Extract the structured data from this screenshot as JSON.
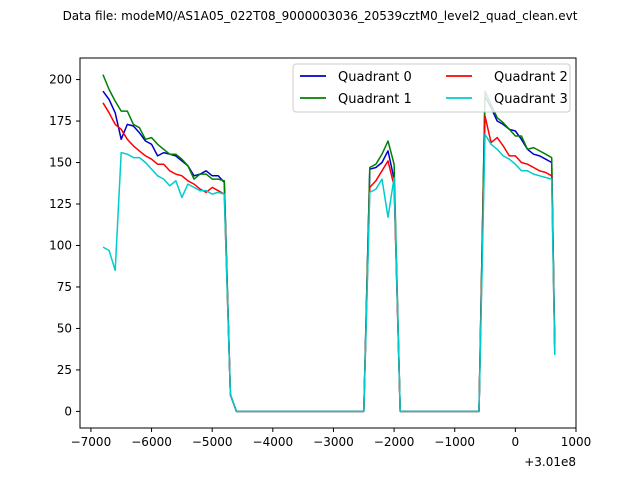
{
  "chart_data": {
    "type": "line",
    "title": "Data file: modeM0/AS1A05_022T08_9000003036_20539cztM0_level2_quad_clean.evt",
    "xlabel": "",
    "ylabel": "",
    "x_offset_label": "+3.01e8",
    "xlim": [
      -7180,
      1000
    ],
    "ylim": [
      -10,
      213
    ],
    "xticks": [
      -7000,
      -6000,
      -5000,
      -4000,
      -3000,
      -2000,
      -1000,
      0,
      1000
    ],
    "xtick_labels": [
      "−7000",
      "−6000",
      "−5000",
      "−4000",
      "−3000",
      "−2000",
      "−1000",
      "0",
      "1000"
    ],
    "yticks": [
      0,
      25,
      50,
      75,
      100,
      125,
      150,
      175,
      200
    ],
    "ytick_labels": [
      "0",
      "25",
      "50",
      "75",
      "100",
      "125",
      "150",
      "175",
      "200"
    ],
    "grid": false,
    "legend": {
      "placement": "top-right",
      "columns": 2
    },
    "series": [
      {
        "name": "Quadrant 0",
        "color": "#0000cc",
        "x": [
          -6800,
          -6700,
          -6600,
          -6500,
          -6400,
          -6300,
          -6200,
          -6100,
          -6000,
          -5900,
          -5800,
          -5700,
          -5600,
          -5500,
          -5400,
          -5300,
          -5200,
          -5100,
          -5000,
          -4900,
          -4800,
          -4700,
          -4600,
          -4500,
          -4400,
          -4300,
          -4200,
          -4100,
          -4000,
          -3900,
          -3800,
          -3700,
          -3600,
          -3500,
          -3400,
          -3300,
          -3200,
          -3100,
          -3000,
          -2900,
          -2800,
          -2700,
          -2600,
          -2500,
          -2400,
          -2300,
          -2200,
          -2100,
          -2000,
          -1900,
          -1800,
          -1700,
          -1600,
          -1500,
          -1400,
          -1300,
          -1200,
          -1100,
          -1000,
          -900,
          -800,
          -700,
          -600,
          -500,
          -400,
          -300,
          -200,
          -100,
          0,
          100,
          200,
          300,
          400,
          500,
          600,
          650
        ],
        "y": [
          193,
          188,
          180,
          164,
          173,
          172,
          168,
          163,
          161,
          154,
          156,
          155,
          154,
          151,
          148,
          142,
          143,
          145,
          142,
          142,
          138,
          10,
          0,
          0,
          0,
          0,
          0,
          0,
          0,
          0,
          0,
          0,
          0,
          0,
          0,
          0,
          0,
          0,
          0,
          0,
          0,
          0,
          0,
          0,
          146,
          147,
          150,
          157,
          140,
          0,
          0,
          0,
          0,
          0,
          0,
          0,
          0,
          0,
          0,
          0,
          0,
          0,
          0,
          190,
          183,
          175,
          173,
          170,
          169,
          164,
          158,
          155,
          154,
          152,
          150,
          38
        ]
      },
      {
        "name": "Quadrant 1",
        "color": "#008000",
        "x": [
          -6800,
          -6700,
          -6600,
          -6500,
          -6400,
          -6300,
          -6200,
          -6100,
          -6000,
          -5900,
          -5800,
          -5700,
          -5600,
          -5500,
          -5400,
          -5300,
          -5200,
          -5100,
          -5000,
          -4900,
          -4800,
          -4700,
          -4600,
          -4500,
          -4400,
          -4300,
          -4200,
          -4100,
          -4000,
          -3900,
          -3800,
          -3700,
          -3600,
          -3500,
          -3400,
          -3300,
          -3200,
          -3100,
          -3000,
          -2900,
          -2800,
          -2700,
          -2600,
          -2500,
          -2400,
          -2300,
          -2200,
          -2100,
          -2000,
          -1900,
          -1800,
          -1700,
          -1600,
          -1500,
          -1400,
          -1300,
          -1200,
          -1100,
          -1000,
          -900,
          -800,
          -700,
          -600,
          -500,
          -400,
          -300,
          -200,
          -100,
          0,
          100,
          200,
          300,
          400,
          500,
          600,
          650
        ],
        "y": [
          203,
          194,
          187,
          181,
          181,
          173,
          171,
          164,
          165,
          161,
          158,
          155,
          155,
          152,
          148,
          140,
          143,
          143,
          140,
          140,
          139,
          10,
          0,
          0,
          0,
          0,
          0,
          0,
          0,
          0,
          0,
          0,
          0,
          0,
          0,
          0,
          0,
          0,
          0,
          0,
          0,
          0,
          0,
          0,
          147,
          149,
          155,
          163,
          149,
          0,
          0,
          0,
          0,
          0,
          0,
          0,
          0,
          0,
          0,
          0,
          0,
          0,
          0,
          193,
          185,
          177,
          174,
          170,
          166,
          166,
          158,
          159,
          157,
          155,
          153,
          36
        ]
      },
      {
        "name": "Quadrant 2",
        "color": "#ff0000",
        "x": [
          -6800,
          -6700,
          -6600,
          -6500,
          -6400,
          -6300,
          -6200,
          -6100,
          -6000,
          -5900,
          -5800,
          -5700,
          -5600,
          -5500,
          -5400,
          -5300,
          -5200,
          -5100,
          -5000,
          -4900,
          -4800,
          -4700,
          -4600,
          -4500,
          -4400,
          -4300,
          -4200,
          -4100,
          -4000,
          -3900,
          -3800,
          -3700,
          -3600,
          -3500,
          -3400,
          -3300,
          -3200,
          -3100,
          -3000,
          -2900,
          -2800,
          -2700,
          -2600,
          -2500,
          -2400,
          -2300,
          -2200,
          -2100,
          -2000,
          -1900,
          -1800,
          -1700,
          -1600,
          -1500,
          -1400,
          -1300,
          -1200,
          -1100,
          -1000,
          -900,
          -800,
          -700,
          -600,
          -500,
          -400,
          -300,
          -200,
          -100,
          0,
          100,
          200,
          300,
          400,
          500,
          600,
          650
        ],
        "y": [
          186,
          180,
          173,
          170,
          164,
          160,
          157,
          154,
          152,
          149,
          149,
          145,
          143,
          142,
          139,
          137,
          134,
          132,
          135,
          133,
          131,
          10,
          0,
          0,
          0,
          0,
          0,
          0,
          0,
          0,
          0,
          0,
          0,
          0,
          0,
          0,
          0,
          0,
          0,
          0,
          0,
          0,
          0,
          0,
          135,
          139,
          145,
          151,
          136,
          0,
          0,
          0,
          0,
          0,
          0,
          0,
          0,
          0,
          0,
          0,
          0,
          0,
          0,
          178,
          162,
          165,
          160,
          154,
          154,
          150,
          149,
          147,
          145,
          144,
          142,
          35
        ]
      },
      {
        "name": "Quadrant 3",
        "color": "#00cccc",
        "x": [
          -6800,
          -6700,
          -6600,
          -6500,
          -6400,
          -6300,
          -6200,
          -6100,
          -6000,
          -5900,
          -5800,
          -5700,
          -5600,
          -5500,
          -5400,
          -5300,
          -5200,
          -5100,
          -5000,
          -4900,
          -4800,
          -4700,
          -4600,
          -4500,
          -4400,
          -4300,
          -4200,
          -4100,
          -4000,
          -3900,
          -3800,
          -3700,
          -3600,
          -3500,
          -3400,
          -3300,
          -3200,
          -3100,
          -3000,
          -2900,
          -2800,
          -2700,
          -2600,
          -2500,
          -2400,
          -2300,
          -2200,
          -2100,
          -2000,
          -1900,
          -1800,
          -1700,
          -1600,
          -1500,
          -1400,
          -1300,
          -1200,
          -1100,
          -1000,
          -900,
          -800,
          -700,
          -600,
          -500,
          -400,
          -300,
          -200,
          -100,
          0,
          100,
          200,
          300,
          400,
          500,
          600,
          650
        ],
        "y": [
          99,
          97,
          85,
          156,
          155,
          153,
          153,
          150,
          146,
          142,
          140,
          136,
          139,
          129,
          137,
          135,
          133,
          133,
          131,
          132,
          131,
          10,
          0,
          0,
          0,
          0,
          0,
          0,
          0,
          0,
          0,
          0,
          0,
          0,
          0,
          0,
          0,
          0,
          0,
          0,
          0,
          0,
          0,
          0,
          132,
          134,
          140,
          117,
          141,
          0,
          0,
          0,
          0,
          0,
          0,
          0,
          0,
          0,
          0,
          0,
          0,
          0,
          0,
          167,
          161,
          158,
          154,
          152,
          149,
          145,
          145,
          143,
          142,
          141,
          140,
          34
        ]
      }
    ]
  }
}
